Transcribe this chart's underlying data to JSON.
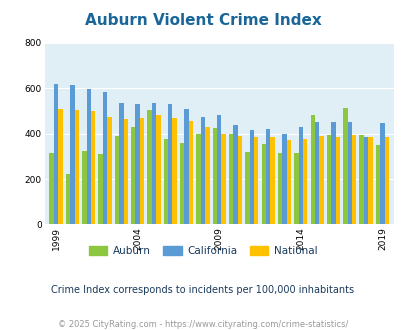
{
  "title": "Auburn Violent Crime Index",
  "title_color": "#1a6699",
  "subtitle": "Crime Index corresponds to incidents per 100,000 inhabitants",
  "footer": "© 2025 CityRating.com - https://www.cityrating.com/crime-statistics/",
  "years": [
    1999,
    2000,
    2001,
    2002,
    2003,
    2004,
    2005,
    2006,
    2007,
    2008,
    2009,
    2010,
    2011,
    2012,
    2013,
    2014,
    2015,
    2016,
    2017,
    2018,
    2019
  ],
  "auburn": [
    315,
    220,
    325,
    310,
    390,
    430,
    505,
    375,
    360,
    400,
    425,
    400,
    320,
    355,
    315,
    315,
    480,
    395,
    515,
    395,
    350
  ],
  "california": [
    620,
    615,
    595,
    585,
    535,
    530,
    535,
    530,
    510,
    475,
    480,
    440,
    415,
    420,
    400,
    430,
    450,
    450,
    450,
    385,
    445
  ],
  "national": [
    510,
    505,
    500,
    475,
    465,
    470,
    480,
    470,
    455,
    430,
    400,
    390,
    385,
    385,
    370,
    375,
    390,
    385,
    395,
    385,
    385
  ],
  "auburn_color": "#8dc63f",
  "california_color": "#5b9bd5",
  "national_color": "#ffc000",
  "background_color": "#e0eef5",
  "ylim": [
    0,
    800
  ],
  "yticks": [
    0,
    200,
    400,
    600,
    800
  ],
  "xlabel_ticks": [
    1999,
    2004,
    2009,
    2014,
    2019
  ],
  "bar_width": 0.27,
  "subtitle_color": "#1a3a5c",
  "footer_color": "#999999"
}
